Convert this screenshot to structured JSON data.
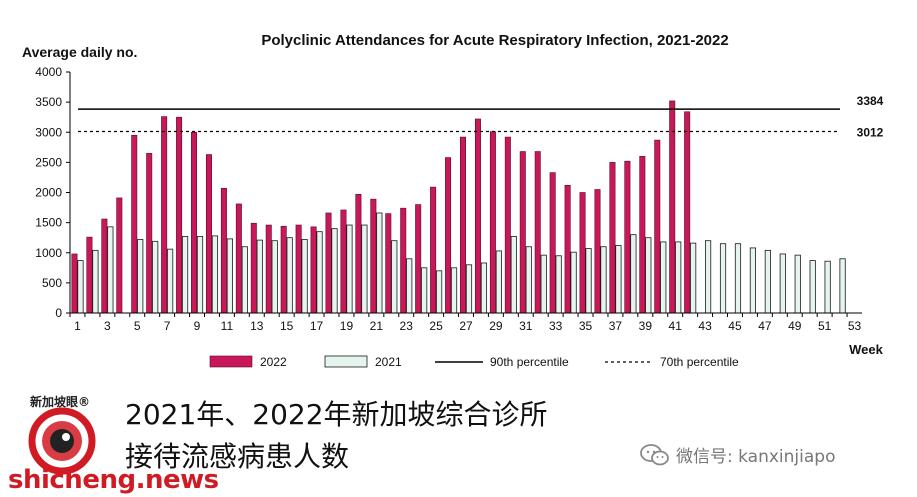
{
  "chart_data": {
    "type": "bar",
    "title": "Polyclinic Attendances for Acute Respiratory Infection, 2021-2022",
    "ylabel": "Average daily no.",
    "xlabel": "Week",
    "ylim": [
      0,
      4000
    ],
    "yticks": [
      "0",
      "500",
      "1000",
      "1500",
      "2000",
      "2500",
      "3000",
      "3500",
      "4000"
    ],
    "xticks": [
      "1",
      "3",
      "5",
      "7",
      "9",
      "11",
      "13",
      "15",
      "17",
      "19",
      "21",
      "23",
      "25",
      "27",
      "29",
      "31",
      "33",
      "35",
      "37",
      "39",
      "41",
      "43",
      "45",
      "47",
      "49",
      "51",
      "53"
    ],
    "weeks": [
      1,
      2,
      3,
      4,
      5,
      6,
      7,
      8,
      9,
      10,
      11,
      12,
      13,
      14,
      15,
      16,
      17,
      18,
      19,
      20,
      21,
      22,
      23,
      24,
      25,
      26,
      27,
      28,
      29,
      30,
      31,
      32,
      33,
      34,
      35,
      36,
      37,
      38,
      39,
      40,
      41,
      42,
      43,
      44,
      45,
      46,
      47,
      48,
      49,
      50,
      51,
      52,
      53
    ],
    "series": [
      {
        "name": "2022",
        "color": "#c8185a",
        "values": [
          980,
          1260,
          1560,
          1910,
          2950,
          2650,
          3260,
          3250,
          3000,
          2630,
          2070,
          1810,
          1490,
          1460,
          1440,
          1460,
          1430,
          1660,
          1710,
          1970,
          1890,
          1650,
          1740,
          1800,
          2090,
          2580,
          2920,
          3220,
          3010,
          2920,
          2680,
          2680,
          2330,
          2120,
          2000,
          2050,
          2500,
          2520,
          2600,
          2870,
          3520,
          3340,
          null,
          null,
          null,
          null,
          null,
          null,
          null,
          null,
          null,
          null,
          null
        ]
      },
      {
        "name": "2021",
        "color": "#e6f4ee",
        "values": [
          870,
          1040,
          1430,
          null,
          1220,
          1190,
          1060,
          1270,
          1270,
          1280,
          1230,
          1100,
          1210,
          1200,
          1250,
          1220,
          1350,
          1400,
          1460,
          1460,
          1660,
          1200,
          900,
          750,
          700,
          750,
          800,
          830,
          1030,
          1270,
          1100,
          960,
          950,
          1010,
          1070,
          1100,
          1120,
          1300,
          1250,
          1180,
          1180,
          1160,
          1200,
          1150,
          1150,
          1080,
          1040,
          980,
          960,
          870,
          860,
          900,
          null
        ]
      }
    ],
    "reference_lines": [
      {
        "name": "90th percentile",
        "value": 3384,
        "label": "3384",
        "style": "solid"
      },
      {
        "name": "70th percentile",
        "value": 3012,
        "label": "3012",
        "style": "dashed"
      }
    ],
    "legend_position": "bottom"
  },
  "caption": {
    "line1": "2021年、2022年新加坡综合诊所",
    "line2": "接待流感病患人数"
  },
  "logo_text": "新加坡眼®",
  "site": "shicheng.news",
  "wechat": "微信号: kanxinjiapo"
}
